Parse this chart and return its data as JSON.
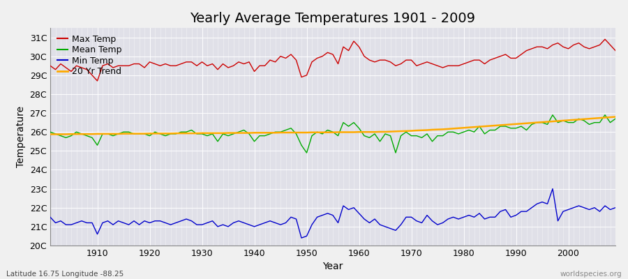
{
  "title": "Yearly Average Temperatures 1901 - 2009",
  "xlabel": "Year",
  "ylabel": "Temperature",
  "footnote_left": "Latitude 16.75 Longitude -88.25",
  "footnote_right": "worldspecies.org",
  "years": [
    1901,
    1902,
    1903,
    1904,
    1905,
    1906,
    1907,
    1908,
    1909,
    1910,
    1911,
    1912,
    1913,
    1914,
    1915,
    1916,
    1917,
    1918,
    1919,
    1920,
    1921,
    1922,
    1923,
    1924,
    1925,
    1926,
    1927,
    1928,
    1929,
    1930,
    1931,
    1932,
    1933,
    1934,
    1935,
    1936,
    1937,
    1938,
    1939,
    1940,
    1941,
    1942,
    1943,
    1944,
    1945,
    1946,
    1947,
    1948,
    1949,
    1950,
    1951,
    1952,
    1953,
    1954,
    1955,
    1956,
    1957,
    1958,
    1959,
    1960,
    1961,
    1962,
    1963,
    1964,
    1965,
    1966,
    1967,
    1968,
    1969,
    1970,
    1971,
    1972,
    1973,
    1974,
    1975,
    1976,
    1977,
    1978,
    1979,
    1980,
    1981,
    1982,
    1983,
    1984,
    1985,
    1986,
    1987,
    1988,
    1989,
    1990,
    1991,
    1992,
    1993,
    1994,
    1995,
    1996,
    1997,
    1998,
    1999,
    2000,
    2001,
    2002,
    2003,
    2004,
    2005,
    2006,
    2007,
    2008,
    2009
  ],
  "max_temp": [
    29.5,
    29.3,
    29.6,
    29.4,
    29.2,
    29.5,
    29.4,
    29.3,
    29.0,
    28.7,
    29.5,
    29.6,
    29.4,
    29.5,
    29.5,
    29.5,
    29.6,
    29.6,
    29.4,
    29.7,
    29.6,
    29.5,
    29.6,
    29.5,
    29.5,
    29.6,
    29.7,
    29.7,
    29.5,
    29.7,
    29.5,
    29.6,
    29.3,
    29.6,
    29.4,
    29.5,
    29.7,
    29.6,
    29.7,
    29.2,
    29.5,
    29.5,
    29.8,
    29.7,
    30.0,
    29.9,
    30.1,
    29.8,
    28.9,
    29.0,
    29.7,
    29.9,
    30.0,
    30.2,
    30.1,
    29.6,
    30.5,
    30.3,
    30.8,
    30.5,
    30.0,
    29.8,
    29.7,
    29.8,
    29.8,
    29.7,
    29.5,
    29.6,
    29.8,
    29.8,
    29.5,
    29.6,
    29.7,
    29.6,
    29.5,
    29.4,
    29.5,
    29.5,
    29.5,
    29.6,
    29.7,
    29.8,
    29.8,
    29.6,
    29.8,
    29.9,
    30.0,
    30.1,
    29.9,
    29.9,
    30.1,
    30.3,
    30.4,
    30.5,
    30.5,
    30.4,
    30.6,
    30.7,
    30.5,
    30.4,
    30.6,
    30.7,
    30.5,
    30.4,
    30.5,
    30.6,
    30.9,
    30.6,
    30.3
  ],
  "mean_temp": [
    26.0,
    25.9,
    25.8,
    25.7,
    25.8,
    26.0,
    25.9,
    25.8,
    25.7,
    25.3,
    25.9,
    25.9,
    25.8,
    25.9,
    26.0,
    26.0,
    25.9,
    25.9,
    25.9,
    25.8,
    26.0,
    25.9,
    25.8,
    25.9,
    25.9,
    26.0,
    26.0,
    26.1,
    25.9,
    25.9,
    25.8,
    25.9,
    25.5,
    25.9,
    25.8,
    25.9,
    26.0,
    26.1,
    25.9,
    25.5,
    25.8,
    25.8,
    25.9,
    26.0,
    26.0,
    26.1,
    26.2,
    25.9,
    25.3,
    24.9,
    25.8,
    26.0,
    25.9,
    26.1,
    26.0,
    25.8,
    26.5,
    26.3,
    26.5,
    26.2,
    25.8,
    25.7,
    25.9,
    25.5,
    25.9,
    25.8,
    24.9,
    25.8,
    26.0,
    25.8,
    25.8,
    25.7,
    25.9,
    25.5,
    25.8,
    25.8,
    26.0,
    26.0,
    25.9,
    26.0,
    26.1,
    26.0,
    26.3,
    25.9,
    26.1,
    26.1,
    26.3,
    26.3,
    26.2,
    26.2,
    26.3,
    26.1,
    26.4,
    26.5,
    26.5,
    26.4,
    26.9,
    26.5,
    26.6,
    26.5,
    26.5,
    26.7,
    26.6,
    26.4,
    26.5,
    26.5,
    26.9,
    26.5,
    26.7
  ],
  "min_temp": [
    21.5,
    21.2,
    21.3,
    21.1,
    21.1,
    21.2,
    21.3,
    21.2,
    21.2,
    20.6,
    21.2,
    21.3,
    21.1,
    21.3,
    21.2,
    21.1,
    21.3,
    21.1,
    21.3,
    21.2,
    21.3,
    21.3,
    21.2,
    21.1,
    21.2,
    21.3,
    21.4,
    21.3,
    21.1,
    21.1,
    21.2,
    21.3,
    21.0,
    21.1,
    21.0,
    21.2,
    21.3,
    21.2,
    21.1,
    21.0,
    21.1,
    21.2,
    21.3,
    21.2,
    21.1,
    21.2,
    21.5,
    21.4,
    20.4,
    20.5,
    21.1,
    21.5,
    21.6,
    21.7,
    21.6,
    21.2,
    22.1,
    21.9,
    22.0,
    21.7,
    21.4,
    21.2,
    21.4,
    21.1,
    21.0,
    20.9,
    20.8,
    21.1,
    21.5,
    21.5,
    21.3,
    21.2,
    21.6,
    21.3,
    21.1,
    21.2,
    21.4,
    21.5,
    21.4,
    21.5,
    21.6,
    21.5,
    21.7,
    21.4,
    21.5,
    21.5,
    21.8,
    21.9,
    21.5,
    21.6,
    21.8,
    21.8,
    22.0,
    22.2,
    22.3,
    22.2,
    23.0,
    21.3,
    21.8,
    21.9,
    22.0,
    22.1,
    22.0,
    21.9,
    22.0,
    21.8,
    22.1,
    21.9,
    22.0
  ],
  "trend_temp": [
    25.88,
    25.88,
    25.88,
    25.88,
    25.89,
    25.89,
    25.89,
    25.89,
    25.89,
    25.9,
    25.9,
    25.9,
    25.9,
    25.9,
    25.91,
    25.91,
    25.91,
    25.91,
    25.91,
    25.92,
    25.92,
    25.92,
    25.92,
    25.92,
    25.93,
    25.93,
    25.93,
    25.93,
    25.93,
    25.94,
    25.94,
    25.94,
    25.94,
    25.94,
    25.95,
    25.95,
    25.95,
    25.95,
    25.95,
    25.96,
    25.96,
    25.96,
    25.96,
    25.96,
    25.97,
    25.97,
    25.97,
    25.97,
    25.97,
    25.97,
    25.98,
    25.98,
    25.98,
    25.98,
    25.98,
    25.99,
    25.99,
    25.99,
    25.99,
    26.0,
    26.0,
    26.0,
    26.0,
    26.01,
    26.01,
    26.02,
    26.03,
    26.04,
    26.05,
    26.06,
    26.08,
    26.09,
    26.1,
    26.12,
    26.13,
    26.14,
    26.16,
    26.18,
    26.2,
    26.22,
    26.24,
    26.26,
    26.28,
    26.3,
    26.32,
    26.34,
    26.36,
    26.38,
    26.4,
    26.42,
    26.44,
    26.46,
    26.48,
    26.5,
    26.52,
    26.54,
    26.56,
    26.58,
    26.6,
    26.62,
    26.64,
    26.66,
    26.68,
    26.7,
    26.72,
    26.74,
    26.76,
    26.78,
    26.8
  ],
  "bg_color": "#f0f0f0",
  "plot_bg_color": "#e0e0e8",
  "max_color": "#cc0000",
  "mean_color": "#00aa00",
  "min_color": "#0000cc",
  "trend_color": "#ffaa00",
  "ylim": [
    20.0,
    31.5
  ],
  "yticks": [
    20,
    21,
    22,
    23,
    24,
    25,
    26,
    27,
    28,
    29,
    30,
    31
  ],
  "ytick_labels": [
    "20C",
    "21C",
    "22C",
    "23C",
    "24C",
    "25C",
    "26C",
    "27C",
    "28C",
    "29C",
    "30C",
    "31C"
  ],
  "xlim": [
    1901,
    2009
  ],
  "xticks": [
    1910,
    1920,
    1930,
    1940,
    1950,
    1960,
    1970,
    1980,
    1990,
    2000
  ],
  "title_fontsize": 14,
  "axis_label_fontsize": 10,
  "tick_fontsize": 9,
  "legend_fontsize": 9,
  "line_width": 1.0
}
